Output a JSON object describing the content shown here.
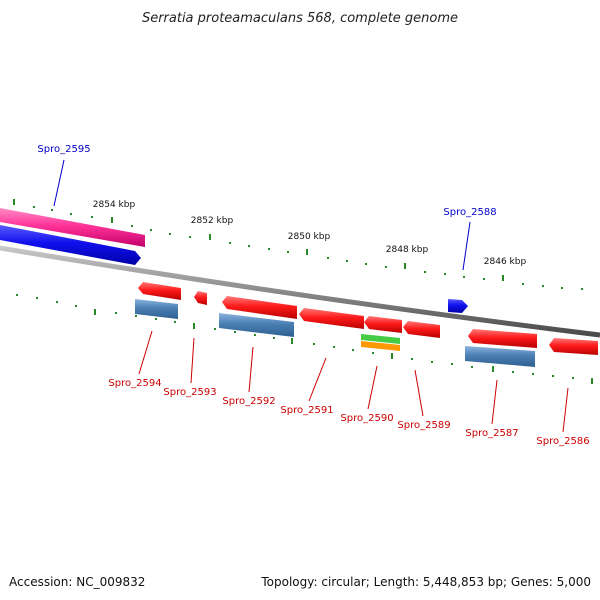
{
  "title": "Serratia proteamaculans 568, complete genome",
  "footer": {
    "accession": "Accession: NC_009832",
    "summary": "Topology: circular; Length: 5,448,853 bp; Genes: 5,000"
  },
  "colors": {
    "backbone": "#8a8a8a",
    "tick": "#2a8a2a",
    "forward_label": "#0000cc",
    "reverse_label": "#cc0000",
    "gene_red": "#ff1a1a",
    "gene_blue": "#1010ee",
    "gene_steel": "#4a7fb5",
    "gene_pink": "#ff3399",
    "gene_green": "#44cc44",
    "gene_orange": "#ff9900"
  },
  "kbp_labels": [
    "2854 kbp",
    "2852 kbp",
    "2850 kbp",
    "2848 kbp",
    "2846 kbp"
  ],
  "forward_labels": [
    "Spro_2595",
    "Spro_2588"
  ],
  "reverse_labels": [
    "Spro_2594",
    "Spro_2593",
    "Spro_2592",
    "Spro_2591",
    "Spro_2590",
    "Spro_2589",
    "Spro_2587",
    "Spro_2586"
  ]
}
